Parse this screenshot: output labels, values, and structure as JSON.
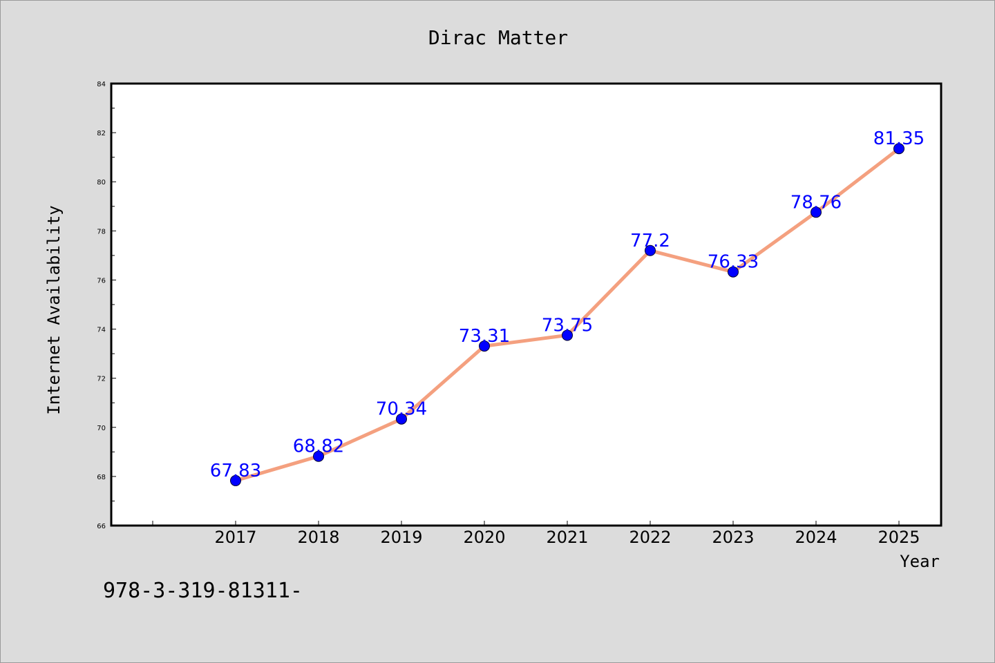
{
  "chart_data": {
    "type": "line",
    "title": "Dirac Matter",
    "xlabel": "Year",
    "ylabel": "Internet Availability",
    "x": [
      "2017",
      "2018",
      "2019",
      "2020",
      "2021",
      "2022",
      "2023",
      "2024",
      "2025"
    ],
    "values": [
      67.83,
      68.82,
      70.34,
      73.31,
      73.75,
      77.2,
      76.33,
      78.76,
      81.35
    ],
    "data_labels": [
      "67.83",
      "68.82",
      "70.34",
      "73.31",
      "73.75",
      "77.2",
      "76.33",
      "78.76",
      "81.35"
    ],
    "ylim": [
      66,
      84
    ],
    "yticks": [
      "66",
      "68",
      "70",
      "72",
      "74",
      "76",
      "78",
      "80",
      "82",
      "84"
    ],
    "grid": false,
    "line_color": "#f4a07f",
    "marker_color": "#0000ff",
    "label_color": "#0000ff"
  },
  "footer": {
    "text": "978-3-319-81311-"
  }
}
